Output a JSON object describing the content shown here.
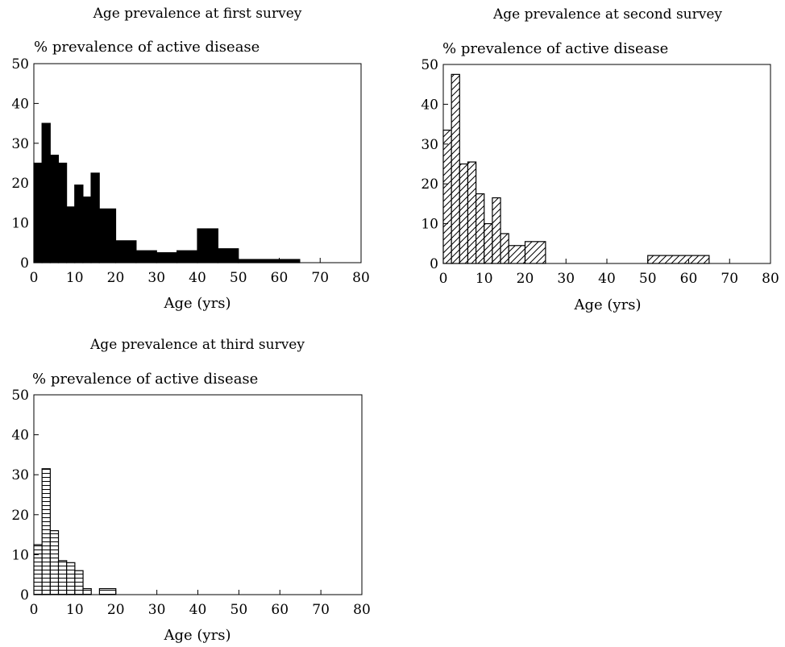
{
  "chart_data": [
    {
      "type": "bar",
      "title": "Age prevalence at first survey",
      "ylabel": "% prevalence of active disease",
      "xlabel": "Age (yrs)",
      "fill": "solid",
      "xlim": [
        0,
        80
      ],
      "ylim": [
        0,
        50
      ],
      "xticks": [
        "0",
        "10",
        "20",
        "30",
        "40",
        "50",
        "60",
        "70",
        "80"
      ],
      "yticks": [
        "0",
        "10",
        "20",
        "30",
        "40",
        "50"
      ],
      "bins": [
        {
          "x0": 0,
          "x1": 2,
          "value": 25
        },
        {
          "x0": 2,
          "x1": 4,
          "value": 35
        },
        {
          "x0": 4,
          "x1": 6,
          "value": 27
        },
        {
          "x0": 6,
          "x1": 8,
          "value": 25
        },
        {
          "x0": 8,
          "x1": 10,
          "value": 14
        },
        {
          "x0": 10,
          "x1": 12,
          "value": 19.5
        },
        {
          "x0": 12,
          "x1": 14,
          "value": 16.5
        },
        {
          "x0": 14,
          "x1": 16,
          "value": 22.5
        },
        {
          "x0": 16,
          "x1": 20,
          "value": 13.5
        },
        {
          "x0": 20,
          "x1": 25,
          "value": 5.5
        },
        {
          "x0": 25,
          "x1": 30,
          "value": 3
        },
        {
          "x0": 30,
          "x1": 35,
          "value": 2.5
        },
        {
          "x0": 35,
          "x1": 40,
          "value": 3
        },
        {
          "x0": 40,
          "x1": 45,
          "value": 8.5
        },
        {
          "x0": 45,
          "x1": 50,
          "value": 3.5
        },
        {
          "x0": 50,
          "x1": 65,
          "value": 0.8
        }
      ]
    },
    {
      "type": "bar",
      "title": "Age prevalence at second survey",
      "ylabel": "% prevalence of active disease",
      "xlabel": "Age (yrs)",
      "fill": "diagonal-hatch",
      "xlim": [
        0,
        80
      ],
      "ylim": [
        0,
        50
      ],
      "xticks": [
        "0",
        "10",
        "20",
        "30",
        "40",
        "50",
        "60",
        "70",
        "80"
      ],
      "yticks": [
        "0",
        "10",
        "20",
        "30",
        "40",
        "50"
      ],
      "bins": [
        {
          "x0": 0,
          "x1": 2,
          "value": 33.5
        },
        {
          "x0": 2,
          "x1": 4,
          "value": 47.5
        },
        {
          "x0": 4,
          "x1": 6,
          "value": 25
        },
        {
          "x0": 6,
          "x1": 8,
          "value": 25.5
        },
        {
          "x0": 8,
          "x1": 10,
          "value": 17.5
        },
        {
          "x0": 10,
          "x1": 12,
          "value": 10
        },
        {
          "x0": 12,
          "x1": 14,
          "value": 16.5
        },
        {
          "x0": 14,
          "x1": 16,
          "value": 7.5
        },
        {
          "x0": 16,
          "x1": 20,
          "value": 4.5
        },
        {
          "x0": 20,
          "x1": 25,
          "value": 5.5
        },
        {
          "x0": 50,
          "x1": 65,
          "value": 2
        }
      ]
    },
    {
      "type": "bar",
      "title": "Age prevalence at third survey",
      "ylabel": "% prevalence of active disease",
      "xlabel": "Age (yrs)",
      "fill": "horizontal-hatch",
      "xlim": [
        0,
        80
      ],
      "ylim": [
        0,
        50
      ],
      "xticks": [
        "0",
        "10",
        "20",
        "30",
        "40",
        "50",
        "60",
        "70",
        "80"
      ],
      "yticks": [
        "0",
        "10",
        "20",
        "30",
        "40",
        "50"
      ],
      "bins": [
        {
          "x0": 0,
          "x1": 2,
          "value": 12.5
        },
        {
          "x0": 2,
          "x1": 4,
          "value": 31.5
        },
        {
          "x0": 4,
          "x1": 6,
          "value": 16
        },
        {
          "x0": 6,
          "x1": 8,
          "value": 8.5
        },
        {
          "x0": 8,
          "x1": 10,
          "value": 8
        },
        {
          "x0": 10,
          "x1": 12,
          "value": 6
        },
        {
          "x0": 12,
          "x1": 14,
          "value": 1.5
        },
        {
          "x0": 14,
          "x1": 16,
          "value": 0
        },
        {
          "x0": 16,
          "x1": 20,
          "value": 1.5
        }
      ]
    }
  ]
}
